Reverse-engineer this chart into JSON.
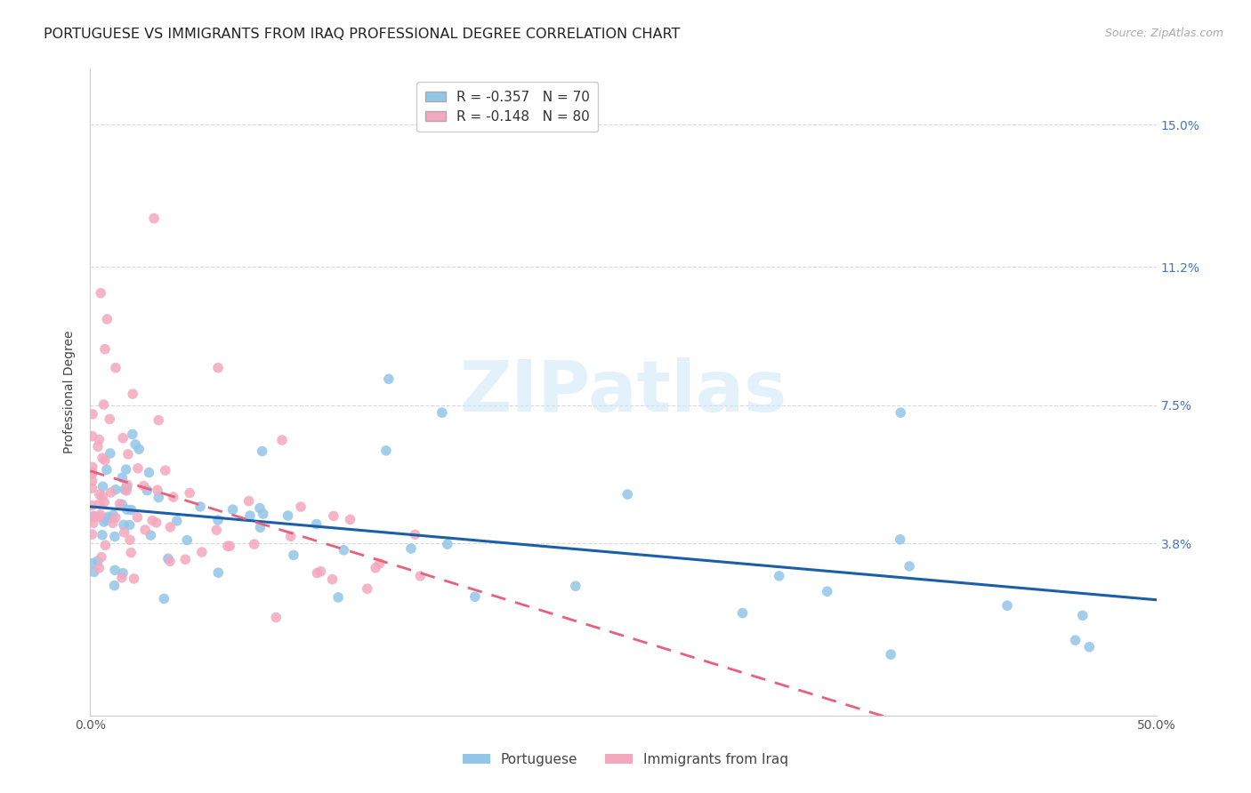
{
  "title": "PORTUGUESE VS IMMIGRANTS FROM IRAQ PROFESSIONAL DEGREE CORRELATION CHART",
  "source": "Source: ZipAtlas.com",
  "ylabel": "Professional Degree",
  "ytick_labels": [
    "15.0%",
    "11.2%",
    "7.5%",
    "3.8%"
  ],
  "ytick_values": [
    0.15,
    0.112,
    0.075,
    0.038
  ],
  "xlim": [
    0.0,
    0.5
  ],
  "ylim": [
    -0.008,
    0.165
  ],
  "watermark": "ZIPatlas",
  "series1_name": "Portuguese",
  "series2_name": "Immigrants from Iraq",
  "series1_color": "#92c5e8",
  "series2_color": "#f4a8be",
  "series1_line_color": "#1a5fa8",
  "series2_line_color": "#e8607a",
  "title_fontsize": 11.5,
  "axis_label_fontsize": 10,
  "tick_fontsize": 10,
  "grid_color": "#d8d8d8",
  "background_color": "#ffffff"
}
